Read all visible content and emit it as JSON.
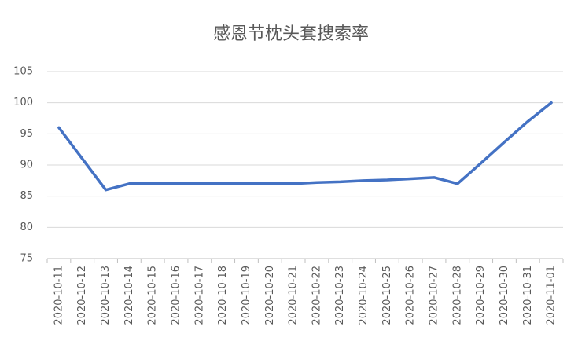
{
  "chart_data": {
    "type": "line",
    "title": "感恩节枕头套搜索率",
    "categories": [
      "2020-10-11",
      "2020-10-12",
      "2020-10-13",
      "2020-10-14",
      "2020-10-15",
      "2020-10-16",
      "2020-10-17",
      "2020-10-18",
      "2020-10-19",
      "2020-10-20",
      "2020-10-21",
      "2020-10-22",
      "2020-10-23",
      "2020-10-24",
      "2020-10-25",
      "2020-10-26",
      "2020-10-27",
      "2020-10-28",
      "2020-10-29",
      "2020-10-30",
      "2020-10-31",
      "2020-11-01"
    ],
    "series": [
      {
        "color": "#4472c4",
        "values": [
          96,
          91,
          86,
          87,
          87,
          87,
          87,
          87,
          87,
          87,
          87,
          87.2,
          87.3,
          87.5,
          87.6,
          87.8,
          88,
          87,
          90.3,
          93.7,
          97,
          100
        ]
      }
    ],
    "ylim": [
      75,
      105
    ],
    "yticks": [
      75,
      80,
      85,
      90,
      95,
      100,
      105
    ],
    "grid": true
  }
}
